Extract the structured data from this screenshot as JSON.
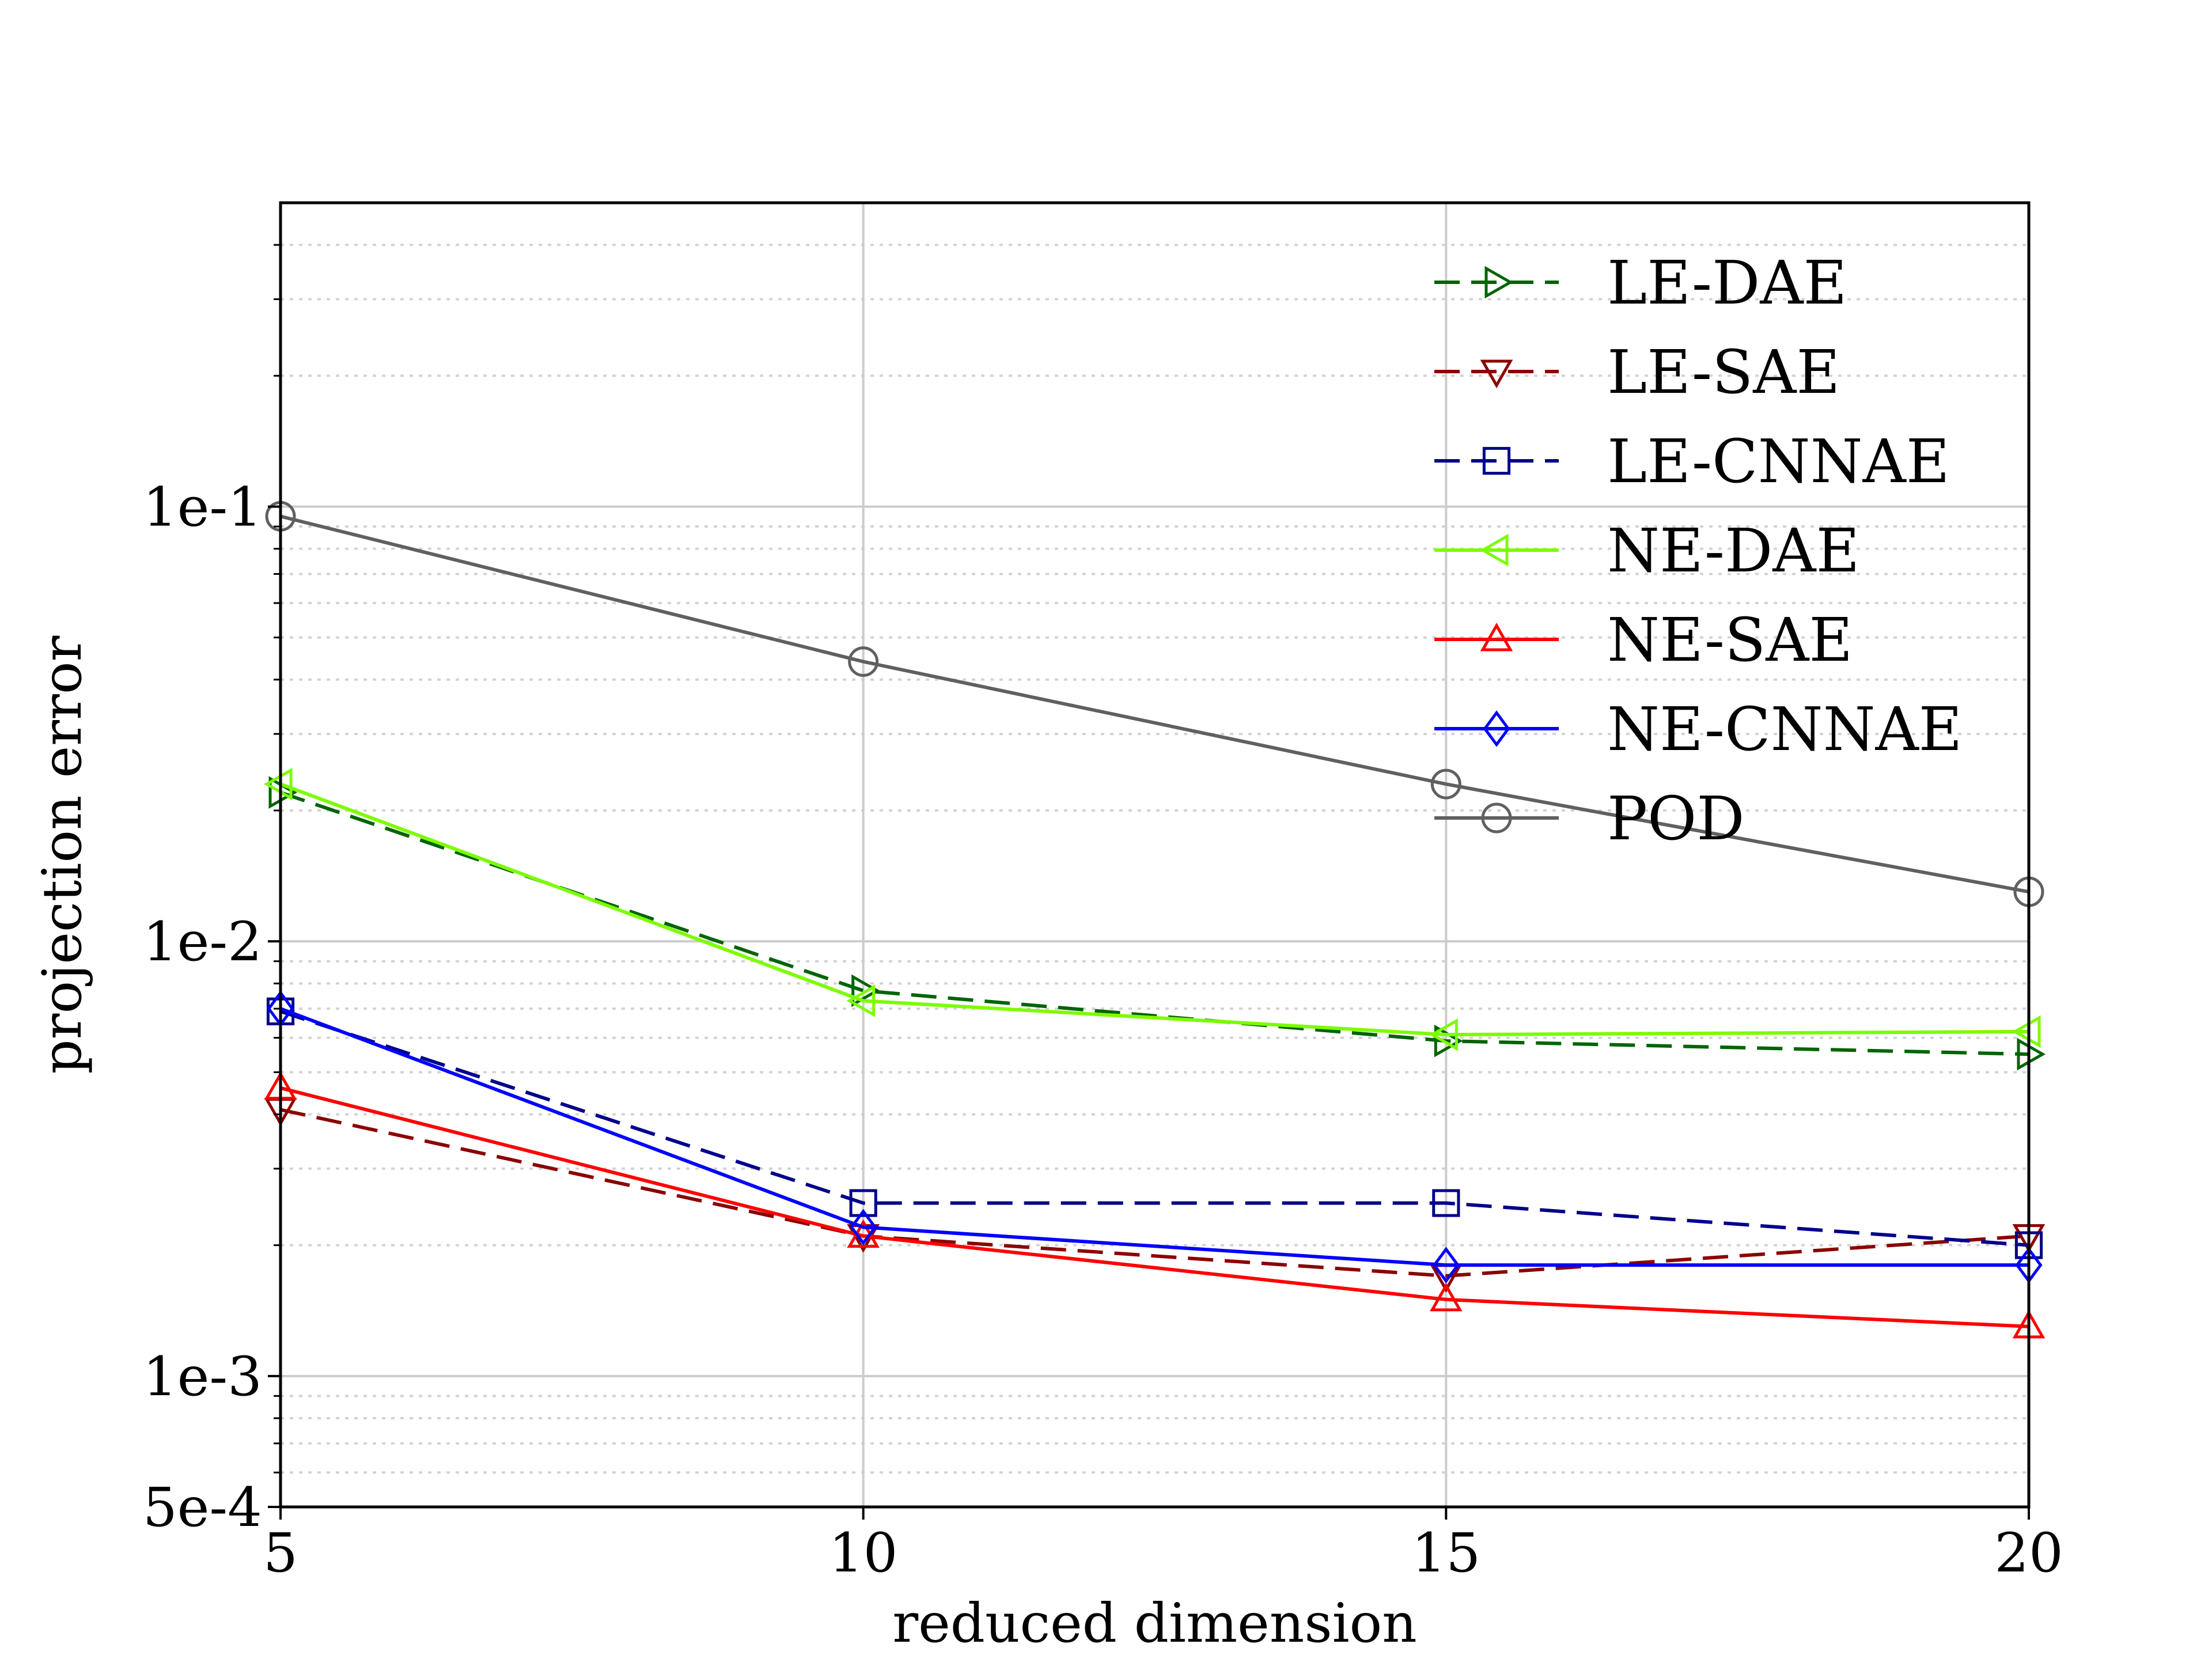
{
  "chart_data": {
    "type": "line",
    "title": "",
    "xlabel": "reduced dimension",
    "ylabel": "projection error",
    "x": [
      5,
      10,
      15,
      20
    ],
    "xlim": [
      5,
      20
    ],
    "ylim": [
      0.0005,
      0.5
    ],
    "yscale": "log",
    "xticks": [
      {
        "value": 5,
        "label": "5"
      },
      {
        "value": 10,
        "label": "10"
      },
      {
        "value": 15,
        "label": "15"
      },
      {
        "value": 20,
        "label": "20"
      }
    ],
    "yticks": [
      {
        "value": 0.0005,
        "label": "5e-4"
      },
      {
        "value": 0.001,
        "label": "1e-3"
      },
      {
        "value": 0.01,
        "label": "1e-2"
      },
      {
        "value": 0.1,
        "label": "1e-1"
      }
    ],
    "grid": true,
    "legend_position": "top-right",
    "series": [
      {
        "name": "LE-DAE",
        "values": [
          0.022,
          0.0077,
          0.0059,
          0.0055
        ],
        "color": "#006400",
        "linestyle": "dashed",
        "marker": "triangle-right"
      },
      {
        "name": "LE-SAE",
        "values": [
          0.0041,
          0.0021,
          0.0017,
          0.0021
        ],
        "color": "#8b0000",
        "linestyle": "dashed",
        "marker": "triangle-down"
      },
      {
        "name": "LE-CNNAE",
        "values": [
          0.0069,
          0.0025,
          0.0025,
          0.002
        ],
        "color": "#00008b",
        "linestyle": "dashed",
        "marker": "square"
      },
      {
        "name": "NE-DAE",
        "values": [
          0.023,
          0.0073,
          0.0061,
          0.0062
        ],
        "color": "#7cfc00",
        "linestyle": "solid",
        "marker": "triangle-left"
      },
      {
        "name": "NE-SAE",
        "values": [
          0.0046,
          0.0021,
          0.0015,
          0.0013
        ],
        "color": "#ff0000",
        "linestyle": "solid",
        "marker": "triangle-up"
      },
      {
        "name": "NE-CNNAE",
        "values": [
          0.007,
          0.0022,
          0.0018,
          0.0018
        ],
        "color": "#0000ff",
        "linestyle": "solid",
        "marker": "diamond"
      },
      {
        "name": "POD",
        "values": [
          0.095,
          0.044,
          0.023,
          0.013
        ],
        "color": "#606060",
        "linestyle": "solid",
        "marker": "circle"
      }
    ]
  }
}
